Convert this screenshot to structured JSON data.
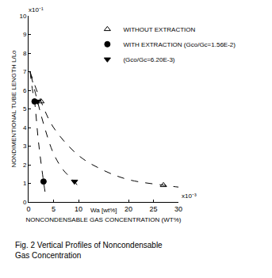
{
  "chart_data": {
    "type": "scatter",
    "title": "Fig. 2 Vertical Profiles of Noncondensable Gas Concentration",
    "x_label": "NONCONDENSABLE GAS CONCENTRATION (WT%)",
    "y_label": "NONDIMENTIONAL TUBE LENGTH L/Lo",
    "annotations": [
      {
        "text": "x10⁻¹",
        "x": 0,
        "y": 10
      },
      {
        "text": "x10⁻³",
        "x": 30,
        "y": 0
      },
      {
        "text": "Wa [wt%]",
        "x": 15,
        "y": 0
      }
    ],
    "xlim": [
      0,
      30
    ],
    "xticks": [
      0,
      5,
      10,
      20,
      25,
      30
    ],
    "ylim": [
      0,
      10
    ],
    "yticks": [
      0,
      1,
      2,
      3,
      4,
      5,
      6,
      7,
      8,
      9,
      10
    ],
    "grid": false,
    "legend": "upper right",
    "series": [
      {
        "name": "WITHOUT EXTRACTION",
        "type": "scatter",
        "marker": "triangle-up-open",
        "color": "#000000",
        "x": [
          2.5,
          27
        ],
        "values": [
          5.4,
          0.9
        ]
      },
      {
        "name": "WITH EXTRACTION (Gco/Gc=1.56E-2)",
        "type": "scatter",
        "marker": "circle",
        "color": "#000000",
        "x": [
          1.2,
          3.0
        ],
        "values": [
          5.4,
          1.1
        ]
      },
      {
        "name": "(Gco/Gc=6.20E-3)",
        "type": "scatter",
        "marker": "triangle-down",
        "color": "#000000",
        "x": [
          1.8,
          9.2
        ],
        "values": [
          5.4,
          1.1
        ]
      },
      {
        "type": "line",
        "line_style": "dash",
        "color": "#000000",
        "x": [
          0.3,
          0.8,
          1.2,
          2.0,
          3.0,
          3.5
        ],
        "values": [
          7.0,
          6.0,
          5.4,
          3.2,
          1.1,
          0.2
        ]
      },
      {
        "type": "line",
        "line_style": "dash",
        "color": "#000000",
        "x": [
          0.5,
          1.8,
          3.0,
          5.0,
          7.0,
          9.2,
          10.0
        ],
        "values": [
          6.8,
          5.4,
          4.2,
          2.6,
          1.7,
          1.1,
          0.8
        ]
      },
      {
        "type": "line",
        "line_style": "dash",
        "color": "#000000",
        "x": [
          0.3,
          2.5,
          5.0,
          10.0,
          15.0,
          20.0,
          27.0,
          30.0
        ],
        "values": [
          7.0,
          5.4,
          4.0,
          2.5,
          1.7,
          1.2,
          0.9,
          0.8
        ]
      }
    ]
  }
}
